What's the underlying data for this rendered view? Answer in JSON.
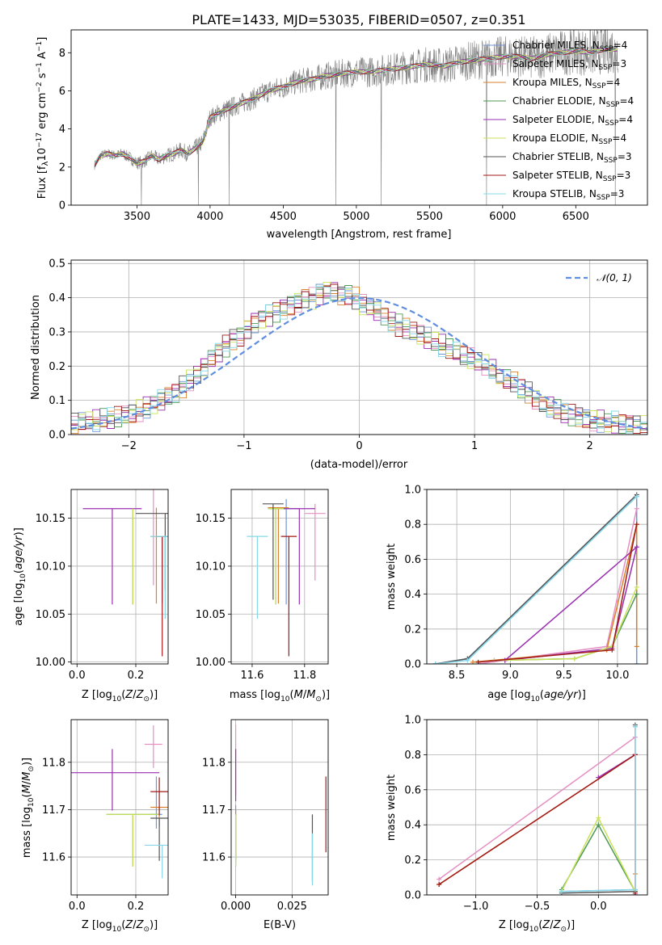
{
  "title": "PLATE=1433, MJD=53035, FIBERID=0507, z=0.351",
  "colors": {
    "Chabrier MILES": "#6f96d6",
    "Salpeter MILES": "#e58fc3",
    "Kroupa MILES": "#d9822b",
    "Chabrier ELODIE": "#4e9a55",
    "Salpeter ELODIE": "#9a2fb0",
    "Kroupa ELODIE": "#c9e25a",
    "Chabrier STELIB": "#555555",
    "Salpeter STELIB": "#a31919",
    "Kroupa STELIB": "#86d8e8",
    "data": "#808080",
    "normal": "#5f8ee0"
  },
  "chart_data": [
    {
      "id": "spectrum",
      "type": "line",
      "xlabel": "wavelength [Angstrom, rest frame]",
      "ylabel": "Flux [f_λ 10^-17 erg cm^-2 s^-1 A^-1]",
      "xlim": [
        3050,
        6990
      ],
      "ylim": [
        0,
        9.2
      ],
      "xticks": [
        3500,
        4000,
        4500,
        5000,
        5500,
        6000,
        6500
      ],
      "yticks": [
        0,
        2,
        4,
        6,
        8
      ],
      "legend_position": "top-right",
      "legend": [
        {
          "model": "Chabrier MILES",
          "label": "Chabrier MILES, N",
          "sub": "SSP",
          "suffix": "=4"
        },
        {
          "model": "Salpeter MILES",
          "label": "Salpeter MILES, N",
          "sub": "SSP",
          "suffix": "=3"
        },
        {
          "model": "Kroupa MILES",
          "label": "Kroupa MILES, N",
          "sub": "SSP",
          "suffix": "=4"
        },
        {
          "model": "Chabrier ELODIE",
          "label": "Chabrier ELODIE, N",
          "sub": "SSP",
          "suffix": "=4"
        },
        {
          "model": "Salpeter ELODIE",
          "label": "Salpeter ELODIE, N",
          "sub": "SSP",
          "suffix": "=4"
        },
        {
          "model": "Kroupa ELODIE",
          "label": "Kroupa ELODIE, N",
          "sub": "SSP",
          "suffix": "=4"
        },
        {
          "model": "Chabrier STELIB",
          "label": "Chabrier STELIB, N",
          "sub": "SSP",
          "suffix": "=3"
        },
        {
          "model": "Salpeter STELIB",
          "label": "Salpeter STELIB, N",
          "sub": "SSP",
          "suffix": "=3"
        },
        {
          "model": "Kroupa STELIB",
          "label": "Kroupa STELIB, N",
          "sub": "SSP",
          "suffix": "=3"
        }
      ],
      "continuum": {
        "x": [
          3210,
          3250,
          3300,
          3350,
          3400,
          3450,
          3500,
          3550,
          3600,
          3650,
          3700,
          3750,
          3800,
          3850,
          3900,
          3950,
          4000,
          4100,
          4200,
          4300,
          4400,
          4500,
          4600,
          4700,
          4800,
          4900,
          5000,
          5100,
          5200,
          5300,
          5400,
          5500,
          5600,
          5700,
          5800,
          5900,
          6000,
          6100,
          6200,
          6300,
          6400,
          6500,
          6600,
          6700,
          6790
        ],
        "y": [
          2.1,
          2.6,
          2.7,
          2.6,
          2.7,
          2.5,
          2.2,
          2.3,
          2.6,
          2.4,
          2.6,
          2.7,
          2.9,
          2.7,
          3.0,
          3.3,
          4.6,
          5.0,
          5.3,
          5.6,
          6.0,
          6.2,
          6.5,
          6.6,
          6.8,
          6.9,
          7.0,
          7.0,
          7.1,
          7.2,
          7.3,
          7.4,
          7.3,
          7.5,
          7.6,
          7.7,
          7.8,
          7.8,
          7.7,
          7.9,
          8.0,
          8.1,
          8.0,
          8.2,
          8.2
        ]
      }
    },
    {
      "id": "residuals",
      "type": "histogram",
      "xlabel": "(data-model)/error",
      "ylabel": "Normed distribution",
      "xlim": [
        -2.5,
        2.5
      ],
      "ylim": [
        0,
        0.51
      ],
      "xticks": [
        -2,
        -1,
        0,
        1,
        2
      ],
      "yticks": [
        0.0,
        0.1,
        0.2,
        0.3,
        0.4,
        0.5
      ],
      "grid": true,
      "legend_position": "top-right",
      "legend_label": "𝒩(0, 1)",
      "bin_width": 0.1,
      "bin_start": -2.5,
      "base_values": [
        0.03,
        0.035,
        0.04,
        0.04,
        0.045,
        0.045,
        0.05,
        0.055,
        0.06,
        0.07,
        0.08,
        0.09,
        0.1,
        0.11,
        0.12,
        0.14,
        0.16,
        0.18,
        0.2,
        0.22,
        0.24,
        0.26,
        0.28,
        0.29,
        0.31,
        0.33,
        0.34,
        0.35,
        0.36,
        0.37,
        0.38,
        0.39,
        0.4,
        0.4,
        0.41,
        0.42,
        0.42,
        0.41,
        0.41,
        0.4,
        0.38,
        0.37,
        0.36,
        0.35,
        0.33,
        0.32,
        0.31,
        0.3,
        0.29,
        0.28,
        0.27,
        0.26,
        0.25,
        0.24,
        0.23,
        0.22,
        0.21,
        0.2,
        0.19,
        0.17,
        0.16,
        0.15,
        0.13,
        0.12,
        0.1,
        0.09,
        0.08,
        0.07,
        0.06,
        0.055,
        0.05,
        0.045,
        0.04,
        0.04,
        0.035,
        0.035,
        0.03,
        0.03,
        0.025,
        0.025
      ]
    },
    {
      "id": "age_vs_Z",
      "type": "scatter",
      "xlabel": "Z [log10(Z/Z☉)]",
      "ylabel": "age [log10(age/yr)]",
      "xlim": [
        -0.02,
        0.31
      ],
      "ylim": [
        9.998,
        10.18
      ],
      "xticks": [
        0.0,
        0.2
      ],
      "yticks": [
        10.0,
        10.05,
        10.1,
        10.15
      ],
      "grid": true,
      "points": [
        {
          "model": "Chabrier MILES",
          "x": 0.29,
          "y": 10.131,
          "xerr": 0.01,
          "yerr": [
            0.07,
            0.0
          ]
        },
        {
          "model": "Salpeter MILES",
          "x": 0.26,
          "y": 10.16,
          "xerr": 0.0,
          "yerr": [
            0.08,
            0.02
          ]
        },
        {
          "model": "Kroupa MILES",
          "x": 0.27,
          "y": 10.131,
          "xerr": 0.02,
          "yerr": [
            0.07,
            0.03
          ]
        },
        {
          "model": "Chabrier ELODIE",
          "x": 0.19,
          "y": 10.16,
          "xerr": 0.0,
          "yerr": [
            0.1,
            0.0
          ]
        },
        {
          "model": "Salpeter ELODIE",
          "x": 0.12,
          "y": 10.16,
          "xerr": 0.1,
          "yerr": [
            0.1,
            0.0
          ]
        },
        {
          "model": "Kroupa ELODIE",
          "x": 0.19,
          "y": 10.16,
          "xerr": 0.0,
          "yerr": [
            0.1,
            0.0
          ]
        },
        {
          "model": "Chabrier STELIB",
          "x": 0.3,
          "y": 10.155,
          "xerr": 0.1,
          "yerr": [
            0.08,
            0.0
          ]
        },
        {
          "model": "Salpeter STELIB",
          "x": 0.29,
          "y": 10.131,
          "xerr": 0.02,
          "yerr": [
            0.125,
            0.0
          ]
        },
        {
          "model": "Kroupa STELIB",
          "x": 0.3,
          "y": 10.131,
          "xerr": 0.05,
          "yerr": [
            0.086,
            0.0
          ]
        }
      ]
    },
    {
      "id": "age_vs_mass",
      "type": "scatter",
      "xlabel": "mass [log10(M/M☉)]",
      "ylabel": "",
      "xlim": [
        11.52,
        11.89
      ],
      "ylim": [
        9.998,
        10.18
      ],
      "xticks": [
        11.6,
        11.8
      ],
      "yticks": [
        10.0,
        10.05,
        10.1,
        10.15
      ],
      "grid": true,
      "points": [
        {
          "model": "Chabrier MILES",
          "x": 11.73,
          "y": 10.16,
          "xerr": 0.05,
          "yerr": [
            0.1,
            0.01
          ]
        },
        {
          "model": "Salpeter MILES",
          "x": 11.84,
          "y": 10.155,
          "xerr": 0.04,
          "yerr": [
            0.07,
            0.01
          ]
        },
        {
          "model": "Kroupa MILES",
          "x": 11.7,
          "y": 10.161,
          "xerr": 0.04,
          "yerr": [
            0.1,
            0.0
          ]
        },
        {
          "model": "Chabrier ELODIE",
          "x": 11.69,
          "y": 10.16,
          "xerr": 0.03,
          "yerr": [
            0.1,
            0.0
          ]
        },
        {
          "model": "Salpeter ELODIE",
          "x": 11.78,
          "y": 10.16,
          "xerr": 0.06,
          "yerr": [
            0.1,
            0.0
          ]
        },
        {
          "model": "Kroupa ELODIE",
          "x": 11.69,
          "y": 10.16,
          "xerr": 0.03,
          "yerr": [
            0.1,
            0.0
          ]
        },
        {
          "model": "Chabrier STELIB",
          "x": 11.68,
          "y": 10.165,
          "xerr": 0.04,
          "yerr": [
            0.1,
            0.0
          ]
        },
        {
          "model": "Salpeter STELIB",
          "x": 11.74,
          "y": 10.131,
          "xerr": 0.03,
          "yerr": [
            0.125,
            0.0
          ]
        },
        {
          "model": "Kroupa STELIB",
          "x": 11.62,
          "y": 10.131,
          "xerr": 0.04,
          "yerr": [
            0.086,
            0.0
          ]
        }
      ]
    },
    {
      "id": "weight_vs_age",
      "type": "line",
      "xlabel": "age [log10(age/yr)]",
      "ylabel": "mass weight",
      "xlim": [
        8.22,
        10.28
      ],
      "ylim": [
        0,
        1.0
      ],
      "xticks": [
        8.5,
        9.0,
        9.5,
        10.0
      ],
      "yticks": [
        0.0,
        0.2,
        0.4,
        0.6,
        0.8,
        1.0
      ],
      "grid": true,
      "series": [
        {
          "model": "Chabrier MILES",
          "x": [
            8.3,
            8.6,
            10.18,
            10.18
          ],
          "y": [
            0.0,
            0.03,
            0.96,
            0.0
          ]
        },
        {
          "model": "Salpeter MILES",
          "x": [
            8.7,
            9.9,
            10.18
          ],
          "y": [
            0.0,
            0.1,
            0.89
          ]
        },
        {
          "model": "Kroupa MILES",
          "x": [
            8.65,
            9.9,
            10.18,
            10.18
          ],
          "y": [
            0.01,
            0.08,
            0.8,
            0.1
          ]
        },
        {
          "model": "Chabrier ELODIE",
          "x": [
            8.85,
            9.6,
            9.95,
            10.18
          ],
          "y": [
            0.02,
            0.03,
            0.1,
            0.4
          ]
        },
        {
          "model": "Salpeter ELODIE",
          "x": [
            8.95,
            9.95,
            10.18,
            8.95
          ],
          "y": [
            0.02,
            0.09,
            0.67,
            0.02
          ]
        },
        {
          "model": "Kroupa ELODIE",
          "x": [
            8.85,
            9.6,
            9.95,
            10.18
          ],
          "y": [
            0.02,
            0.03,
            0.1,
            0.44
          ]
        },
        {
          "model": "Chabrier STELIB",
          "x": [
            8.3,
            8.6,
            10.18
          ],
          "y": [
            0.0,
            0.03,
            0.97
          ]
        },
        {
          "model": "Salpeter STELIB",
          "x": [
            8.7,
            9.95,
            10.18
          ],
          "y": [
            0.01,
            0.08,
            0.8
          ]
        },
        {
          "model": "Kroupa STELIB",
          "x": [
            8.3,
            8.6,
            10.18
          ],
          "y": [
            0.0,
            0.02,
            0.96
          ]
        }
      ]
    },
    {
      "id": "mass_vs_Z",
      "type": "scatter",
      "xlabel": "Z [log10(Z/Z☉)]",
      "ylabel": "mass [log10(M/M☉)]",
      "xlim": [
        -0.02,
        0.31
      ],
      "ylim": [
        11.52,
        11.89
      ],
      "xticks": [
        0.0,
        0.2
      ],
      "yticks": [
        11.6,
        11.7,
        11.8
      ],
      "grid": true,
      "points": [
        {
          "model": "Chabrier MILES",
          "x": 0.27,
          "y": 11.69,
          "xerr": 0.02,
          "yerr": [
            0.03,
            0.08
          ]
        },
        {
          "model": "Salpeter MILES",
          "x": 0.26,
          "y": 11.838,
          "xerr": 0.03,
          "yerr": [
            0.05,
            0.04
          ]
        },
        {
          "model": "Kroupa MILES",
          "x": 0.28,
          "y": 11.705,
          "xerr": 0.03,
          "yerr": [
            0.04,
            0.0
          ]
        },
        {
          "model": "Chabrier ELODIE",
          "x": 0.19,
          "y": 11.69,
          "xerr": 0.09,
          "yerr": [
            0.11,
            0.0
          ]
        },
        {
          "model": "Salpeter ELODIE",
          "x": 0.12,
          "y": 11.778,
          "xerr": 0.16,
          "yerr": [
            0.08,
            0.05
          ]
        },
        {
          "model": "Kroupa ELODIE",
          "x": 0.19,
          "y": 11.69,
          "xerr": 0.09,
          "yerr": [
            0.11,
            0.0
          ]
        },
        {
          "model": "Chabrier STELIB",
          "x": 0.28,
          "y": 11.682,
          "xerr": 0.03,
          "yerr": [
            0.09,
            0.0
          ]
        },
        {
          "model": "Salpeter STELIB",
          "x": 0.28,
          "y": 11.738,
          "xerr": 0.03,
          "yerr": [
            0.05,
            0.03
          ]
        },
        {
          "model": "Kroupa STELIB",
          "x": 0.29,
          "y": 11.625,
          "xerr": 0.06,
          "yerr": [
            0.07,
            0.0
          ]
        }
      ]
    },
    {
      "id": "mass_vs_EBV",
      "type": "scatter",
      "xlabel": "E(B-V)",
      "ylabel": "",
      "xlim": [
        -0.002,
        0.041
      ],
      "ylim": [
        11.52,
        11.89
      ],
      "xticks": [
        0.0,
        0.025
      ],
      "yticks": [
        11.6,
        11.7,
        11.8
      ],
      "grid": true,
      "points": [
        {
          "model": "Chabrier MILES",
          "x": 0.0,
          "y": 11.69,
          "xerr": 0.0,
          "yerr": [
            0.1,
            0.02
          ]
        },
        {
          "model": "Salpeter MILES",
          "x": 0.0,
          "y": 11.83,
          "xerr": 0.0,
          "yerr": [
            0.1,
            0.05
          ]
        },
        {
          "model": "Kroupa MILES",
          "x": 0.0,
          "y": 11.7,
          "xerr": 0.0,
          "yerr": [
            0.1,
            0.0
          ]
        },
        {
          "model": "Chabrier ELODIE",
          "x": 0.0,
          "y": 11.69,
          "xerr": 0.0,
          "yerr": [
            0.11,
            0.0
          ]
        },
        {
          "model": "Salpeter ELODIE",
          "x": 0.0,
          "y": 11.778,
          "xerr": 0.0,
          "yerr": [
            0.06,
            0.05
          ]
        },
        {
          "model": "Kroupa ELODIE",
          "x": 0.0,
          "y": 11.69,
          "xerr": 0.0,
          "yerr": [
            0.11,
            0.0
          ]
        },
        {
          "model": "Chabrier STELIB",
          "x": 0.034,
          "y": 11.62,
          "xerr": 0.0,
          "yerr": [
            0.07,
            0.07
          ]
        },
        {
          "model": "Salpeter STELIB",
          "x": 0.04,
          "y": 11.69,
          "xerr": 0.0,
          "yerr": [
            0.08,
            0.08
          ]
        },
        {
          "model": "Kroupa STELIB",
          "x": 0.034,
          "y": 11.6,
          "xerr": 0.0,
          "yerr": [
            0.06,
            0.05
          ]
        }
      ]
    },
    {
      "id": "weight_vs_Z",
      "type": "line",
      "xlabel": "Z [log10(Z/Z☉)]",
      "ylabel": "mass weight",
      "xlim": [
        -1.4,
        0.4
      ],
      "ylim": [
        0,
        1.0
      ],
      "xticks": [
        -1.0,
        -0.5,
        0.0
      ],
      "yticks": [
        0.0,
        0.2,
        0.4,
        0.6,
        0.8,
        1.0
      ],
      "grid": true,
      "series": [
        {
          "model": "Chabrier MILES",
          "x": [
            -0.3,
            0.3,
            0.3
          ],
          "y": [
            0.02,
            0.03,
            0.96
          ]
        },
        {
          "model": "Salpeter MILES",
          "x": [
            -1.3,
            0.3,
            0.3
          ],
          "y": [
            0.09,
            0.9,
            0.0
          ]
        },
        {
          "model": "Kroupa MILES",
          "x": [
            -1.3,
            0.3,
            0.3
          ],
          "y": [
            0.06,
            0.8,
            0.12
          ]
        },
        {
          "model": "Chabrier ELODIE",
          "x": [
            -0.3,
            0.0,
            0.3
          ],
          "y": [
            0.03,
            0.4,
            0.02
          ]
        },
        {
          "model": "Salpeter ELODIE",
          "x": [
            0.0,
            0.3,
            0.3
          ],
          "y": [
            0.67,
            0.8,
            0.0
          ]
        },
        {
          "model": "Kroupa ELODIE",
          "x": [
            -0.3,
            0.0,
            0.3
          ],
          "y": [
            0.02,
            0.44,
            0.02
          ]
        },
        {
          "model": "Chabrier STELIB",
          "x": [
            -0.3,
            0.3,
            0.3
          ],
          "y": [
            0.01,
            0.02,
            0.97
          ]
        },
        {
          "model": "Salpeter STELIB",
          "x": [
            -1.3,
            0.3,
            0.3
          ],
          "y": [
            0.06,
            0.8,
            0.01
          ]
        },
        {
          "model": "Kroupa STELIB",
          "x": [
            -0.3,
            0.3,
            0.3
          ],
          "y": [
            0.02,
            0.03,
            0.96
          ]
        }
      ]
    }
  ]
}
